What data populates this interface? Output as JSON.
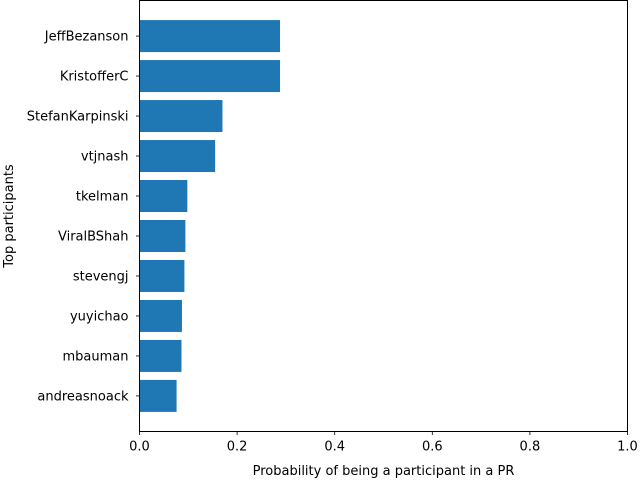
{
  "chart_data": {
    "type": "bar",
    "orientation": "horizontal",
    "categories": [
      "JeffBezanson",
      "KristofferC",
      "StefanKarpinski",
      "vtjnash",
      "tkelman",
      "ViralBShah",
      "stevengj",
      "yuyichao",
      "mbauman",
      "andreasnoack"
    ],
    "values": [
      0.288,
      0.288,
      0.17,
      0.155,
      0.098,
      0.094,
      0.092,
      0.087,
      0.086,
      0.076
    ],
    "xlabel": "Probability of being a participant in a PR",
    "ylabel": "Top participants",
    "xlim": [
      0,
      1.0
    ],
    "xticks": [
      "0.0",
      "0.2",
      "0.4",
      "0.6",
      "0.8",
      "1.0"
    ],
    "bar_color": "#1f77b4",
    "grid": false
  }
}
